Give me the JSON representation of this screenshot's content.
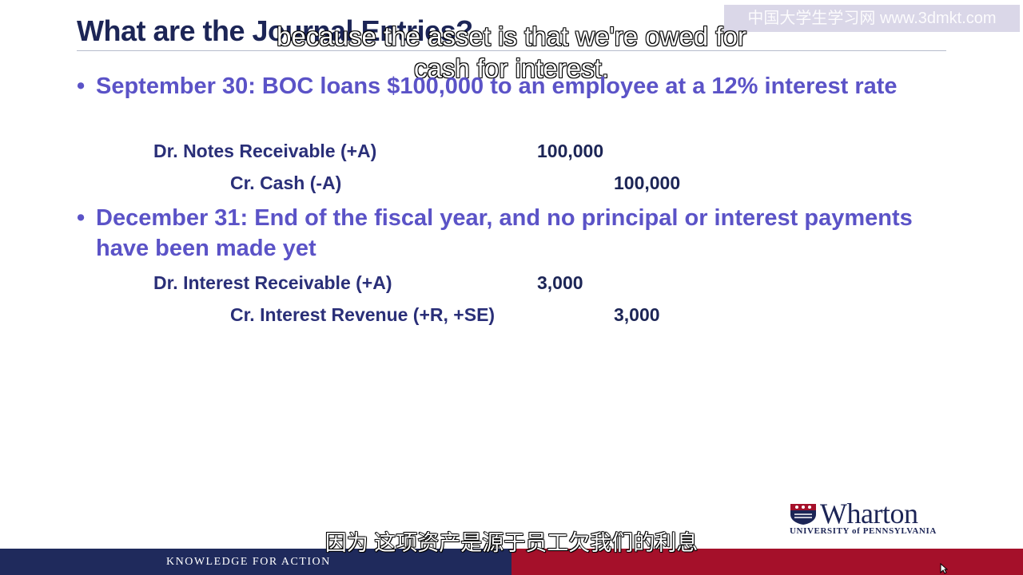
{
  "slide": {
    "title": "What are the Journal Entries?",
    "watermark": "中国大学生学习网 www.3dmkt.com"
  },
  "subtitles": {
    "top_line1": "because the asset is that we're owed for",
    "top_line2": "cash for interest.",
    "bottom": "因为 这项资产是源于员工欠我们的利息"
  },
  "bullets": [
    {
      "text": "September 30: BOC loans $100,000 to an employee at a 12% interest rate",
      "entries": [
        {
          "label": "Dr. Notes Receivable (+A)",
          "debit": "100,000",
          "credit": ""
        },
        {
          "label": "Cr. Cash (-A)",
          "debit": "",
          "credit": "100,000"
        }
      ]
    },
    {
      "text": "December 31: End of the fiscal year, and no principal or interest payments have been made yet",
      "entries": [
        {
          "label": "Dr. Interest Receivable (+A)",
          "debit": "3,000",
          "credit": ""
        },
        {
          "label": "Cr. Interest Revenue (+R, +SE)",
          "debit": "",
          "credit": "3,000"
        }
      ]
    }
  ],
  "logo": {
    "name": "Wharton",
    "university": "UNIVERSITY of PENNSYLVANIA"
  },
  "footer": {
    "tagline": "KNOWLEDGE FOR ACTION"
  },
  "icons": {
    "bullet": "bullet-dot-icon",
    "shield": "penn-shield-icon",
    "cursor": "mouse-pointer-icon"
  },
  "colors": {
    "title": "#1c2556",
    "bullet_text": "#5b53c7",
    "entry_text": "#2a2f78",
    "footer_navy": "#1f2a5c",
    "footer_red": "#a5102a"
  }
}
